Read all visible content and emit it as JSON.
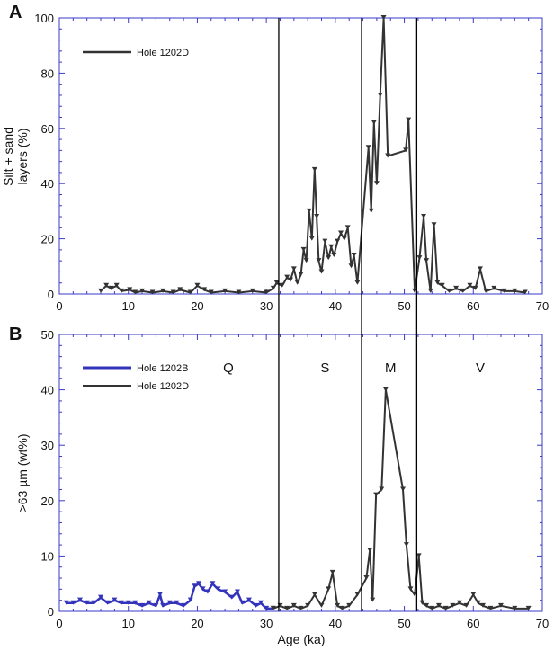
{
  "colors": {
    "axis": "#3a3ac8",
    "hole_1202D": "#333333",
    "hole_1202B": "#3333bb",
    "boundary": "#000000"
  },
  "chart_data": [
    {
      "type": "line",
      "panel_letter": "A",
      "ylabel_line1": "Silt + sand",
      "ylabel_line2": "layers (%)",
      "xlabel": "",
      "xlim": [
        0,
        70
      ],
      "ylim": [
        0,
        100
      ],
      "xticks": [
        0,
        10,
        20,
        30,
        40,
        50,
        60,
        70
      ],
      "yticks": [
        0,
        20,
        40,
        60,
        80,
        100
      ],
      "legend_position": "top-left",
      "series": [
        {
          "name": "Hole 1202D",
          "color": "#333333",
          "x": [
            6,
            6.8,
            7.5,
            8.3,
            9,
            10.2,
            11,
            12,
            13.5,
            15,
            16.5,
            17.5,
            19,
            20,
            21,
            22,
            24,
            26,
            28,
            30,
            31,
            31.5,
            32.3,
            33,
            33.5,
            34,
            34.5,
            35,
            35.4,
            35.8,
            36.2,
            36.6,
            37,
            37.3,
            37.6,
            38,
            38.5,
            39,
            39.4,
            39.8,
            40.3,
            40.8,
            41.3,
            41.8,
            42.3,
            42.7,
            43.2,
            44.8,
            45.2,
            45.6,
            46,
            46.5,
            47,
            47.6,
            50.2,
            50.6,
            51.5,
            52.2,
            52.8,
            53.2,
            53.8,
            54.3,
            54.8,
            55.5,
            56.5,
            57.5,
            58.5,
            59.5,
            60.3,
            61,
            61.8,
            63,
            64.5,
            66,
            67.5
          ],
          "y": [
            1,
            3,
            2,
            3,
            1,
            1.5,
            0.5,
            1,
            0.5,
            1,
            0.5,
            1.5,
            0.5,
            3,
            1.5,
            0.5,
            1,
            0.5,
            1,
            0.5,
            2,
            4,
            3,
            6,
            5,
            9,
            4,
            7,
            16,
            12,
            30,
            20,
            45,
            28,
            12,
            8,
            19,
            13,
            17,
            14,
            19,
            22,
            20,
            24,
            10,
            14,
            4,
            53,
            30,
            62,
            40,
            72,
            100,
            50,
            52,
            63,
            1,
            13,
            28,
            12,
            1,
            25,
            4,
            3,
            1,
            2,
            1,
            3,
            2,
            9,
            1,
            2,
            1,
            1,
            0.5
          ]
        }
      ]
    },
    {
      "type": "line",
      "panel_letter": "B",
      "ylabel": ">63 µm (wt%)",
      "xlabel": "Age (ka)",
      "xlim": [
        0,
        70
      ],
      "ylim": [
        0,
        50
      ],
      "xticks": [
        0,
        10,
        20,
        30,
        40,
        50,
        60,
        70
      ],
      "yticks": [
        0,
        10,
        20,
        30,
        40,
        50
      ],
      "legend_position": "top-left",
      "zone_labels": [
        {
          "label": "Q",
          "x": 24.5
        },
        {
          "label": "S",
          "x": 38.5
        },
        {
          "label": "M",
          "x": 48
        },
        {
          "label": "V",
          "x": 61
        }
      ],
      "series": [
        {
          "name": "Hole 1202B",
          "color": "#3333bb",
          "x": [
            1,
            2,
            3,
            4,
            5,
            6,
            7,
            8,
            9,
            10,
            11,
            12,
            13,
            14,
            14.6,
            15,
            16,
            17,
            18,
            19,
            19.6,
            20.2,
            20.8,
            21.5,
            22.2,
            23,
            24,
            25,
            25.8,
            26.5,
            27.5,
            28.5,
            29.2,
            30,
            31
          ],
          "y": [
            1.5,
            1.5,
            2,
            1.5,
            1.5,
            2.5,
            1.5,
            2,
            1.5,
            1.5,
            1.5,
            1,
            1.5,
            1,
            3,
            1,
            1.5,
            1.5,
            1,
            2,
            4.5,
            5,
            4,
            3.5,
            5,
            4,
            3.5,
            2.5,
            3.5,
            1.5,
            2,
            1,
            1.5,
            0.5,
            0.5
          ]
        },
        {
          "name": "Hole 1202D",
          "color": "#333333",
          "x": [
            31,
            32,
            33,
            34,
            35,
            36,
            37,
            38,
            39,
            39.6,
            40.3,
            41,
            42,
            43.2,
            44.5,
            45,
            45.4,
            45.9,
            46.7,
            47.3,
            49.8,
            50.3,
            50.9,
            51.5,
            52.1,
            52.6,
            53.2,
            54,
            55,
            56,
            57,
            58,
            59,
            60,
            60.7,
            61.4,
            62.5,
            64,
            66,
            68
          ],
          "y": [
            0.5,
            1,
            0.5,
            1,
            0.5,
            1,
            3,
            1,
            4,
            7,
            1,
            0.5,
            1,
            3,
            6,
            11,
            2,
            21,
            22,
            40,
            22,
            12,
            4,
            3,
            10,
            1.5,
            1,
            0.5,
            1,
            0.5,
            1,
            1.5,
            1,
            3,
            1.5,
            1,
            0.5,
            1,
            0.5,
            0.5
          ]
        }
      ]
    }
  ],
  "boundaries_ka": [
    31.8,
    43.8,
    51.8
  ]
}
